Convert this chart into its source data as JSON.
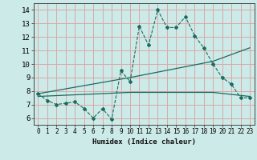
{
  "title": "",
  "xlabel": "Humidex (Indice chaleur)",
  "xlim": [
    -0.5,
    23.5
  ],
  "ylim": [
    5.5,
    14.5
  ],
  "xticks": [
    0,
    1,
    2,
    3,
    4,
    5,
    6,
    7,
    8,
    9,
    10,
    11,
    12,
    13,
    14,
    15,
    16,
    17,
    18,
    19,
    20,
    21,
    22,
    23
  ],
  "yticks": [
    6,
    7,
    8,
    9,
    10,
    11,
    12,
    13,
    14
  ],
  "bg_color": "#cceae7",
  "grid_color": "#d9a8a8",
  "line_color": "#1a6b60",
  "line1_x": [
    0,
    1,
    2,
    3,
    4,
    5,
    6,
    7,
    8,
    9,
    10,
    11,
    12,
    13,
    14,
    15,
    16,
    17,
    18,
    19,
    20,
    21,
    22,
    23
  ],
  "line1_y": [
    7.8,
    7.3,
    7.0,
    7.1,
    7.2,
    6.7,
    6.0,
    6.7,
    5.9,
    9.5,
    8.7,
    12.8,
    11.4,
    14.0,
    12.7,
    12.7,
    13.5,
    12.1,
    11.2,
    10.0,
    9.0,
    8.5,
    7.5,
    7.5
  ],
  "line2_x": [
    0,
    10,
    19,
    23
  ],
  "line2_y": [
    7.8,
    9.0,
    10.2,
    11.2
  ],
  "line3_x": [
    0,
    10,
    19,
    23
  ],
  "line3_y": [
    7.6,
    7.9,
    7.9,
    7.6
  ]
}
